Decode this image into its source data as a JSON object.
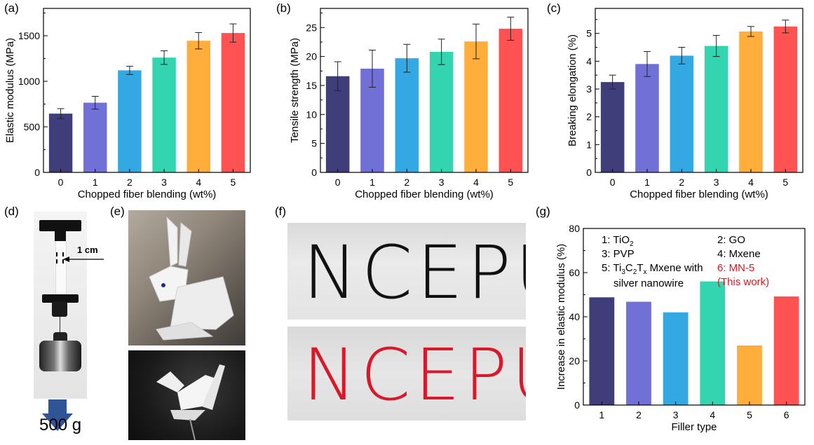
{
  "panel_labels": {
    "a": "(a)",
    "b": "(b)",
    "c": "(c)",
    "d": "(d)",
    "e": "(e)",
    "f": "(f)",
    "g": "(g)"
  },
  "colors": [
    "#3f3d7a",
    "#7070d6",
    "#33a8e2",
    "#33d4b0",
    "#ffad3b",
    "#ff5252"
  ],
  "chart_data": [
    {
      "id": "a",
      "type": "bar",
      "categories": [
        "0",
        "1",
        "2",
        "3",
        "4",
        "5"
      ],
      "values": [
        645,
        765,
        1120,
        1260,
        1445,
        1530
      ],
      "errors": [
        55,
        70,
        45,
        75,
        90,
        100
      ],
      "xlabel": "Chopped fiber blending (wt%)",
      "ylabel": "Elastic modulus (MPa)",
      "ylim": [
        0,
        1800
      ],
      "yticks": [
        0,
        500,
        1000,
        1500
      ],
      "ytick_labels": [
        "0",
        "500",
        "1000",
        "1500"
      ]
    },
    {
      "id": "b",
      "type": "bar",
      "categories": [
        "0",
        "1",
        "2",
        "3",
        "4",
        "5"
      ],
      "values": [
        16.6,
        17.9,
        19.7,
        20.8,
        22.6,
        24.8
      ],
      "errors": [
        2.5,
        3.2,
        2.4,
        2.2,
        3.0,
        2.0
      ],
      "xlabel": "Chopped fiber blending (wt%)",
      "ylabel": "Tensile strength (MPa)",
      "ylim": [
        0,
        28.3
      ],
      "yticks": [
        0,
        5,
        10,
        15,
        20,
        25
      ],
      "ytick_labels": [
        "0",
        "5",
        "10",
        "15",
        "20",
        "25"
      ]
    },
    {
      "id": "c",
      "type": "bar",
      "categories": [
        "0",
        "1",
        "2",
        "3",
        "4",
        "5"
      ],
      "values": [
        3.25,
        3.9,
        4.2,
        4.55,
        5.07,
        5.25
      ],
      "errors": [
        0.25,
        0.45,
        0.3,
        0.38,
        0.18,
        0.23
      ],
      "xlabel": "Chopped fiber blending (wt%)",
      "ylabel": "Breaking elongation (%)",
      "ylim": [
        0,
        5.9
      ],
      "yticks": [
        0,
        1,
        2,
        3,
        4,
        5
      ],
      "ytick_labels": [
        "0",
        "1",
        "2",
        "3",
        "4",
        "5"
      ]
    },
    {
      "id": "g",
      "type": "bar",
      "categories": [
        "1",
        "2",
        "3",
        "4",
        "5",
        "6"
      ],
      "values": [
        48.8,
        46.8,
        42.0,
        56.0,
        27.0,
        49.2
      ],
      "xlabel": "Filler type",
      "ylabel": "Increase in elastic modulus (%)",
      "ylim": [
        0,
        80
      ],
      "yticks": [
        0,
        20,
        40,
        60,
        80
      ],
      "ytick_labels": [
        "0",
        "20",
        "40",
        "60",
        "80"
      ],
      "legend": {
        "item1": "1: TiO",
        "item1_sub": "2",
        "item2": "2: GO",
        "item3": "3: PVP",
        "item4": "4: Mxene",
        "item5_a": "5: Ti",
        "item5_sub3": "3",
        "item5_c": "C",
        "item5_sub2": "2",
        "item5_t": "T",
        "item5_subx": "x",
        "item5_b": " Mxene with",
        "item5_line2": "silver nanowire",
        "item6_line1": "6: MN-5",
        "item6_line2": "(This work)",
        "highlight_color": "#e8141b"
      }
    }
  ],
  "panel_d": {
    "scale_label": "1 cm",
    "weight_label": "500 g"
  },
  "panel_f": {
    "word_black": "NCEPU",
    "word_red": "NCEPU",
    "black_color": "#111111",
    "red_color": "#d8182b"
  }
}
